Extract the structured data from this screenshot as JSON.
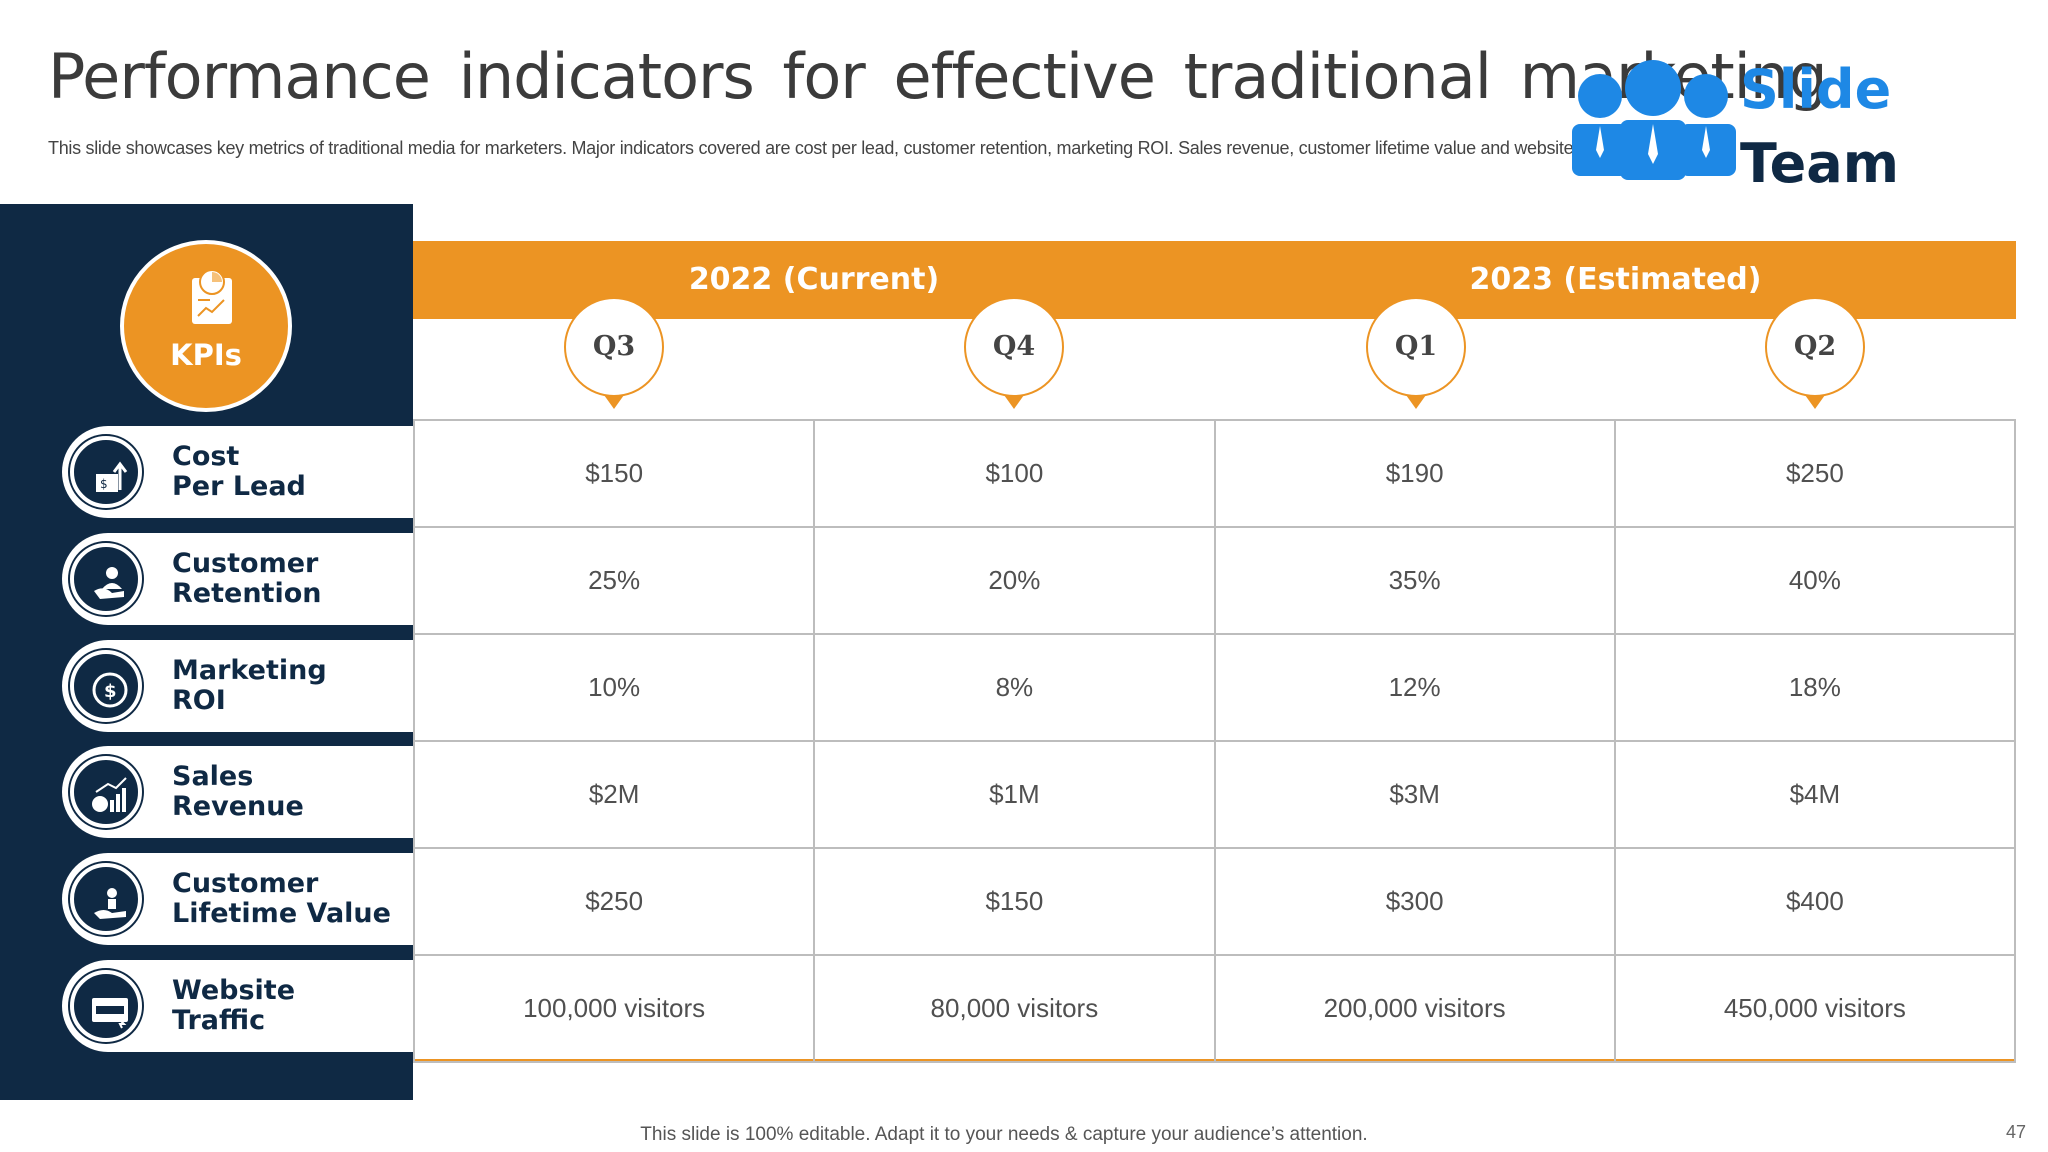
{
  "slide": {
    "title": "Performance indicators for effective traditional marketing",
    "subtitle": "This slide showcases key metrics of traditional media for marketers. Major indicators covered are cost per lead, customer retention, marketing ROI. Sales revenue, customer lifetime value and website traffic",
    "footer": "This slide is 100% editable. Adapt it to your needs & capture your audience’s attention.",
    "page_number": "47"
  },
  "logo": {
    "word1": "Slide",
    "word2": "Team"
  },
  "kpi_header": "KPIs",
  "years": [
    "2022 (Current)",
    "2023 (Estimated)"
  ],
  "quarters": [
    "Q3",
    "Q4",
    "Q1",
    "Q2"
  ],
  "kpis": [
    {
      "line1": "Cost",
      "line2": "Per Lead",
      "icon": "cost-per-lead-icon",
      "values": [
        "$150",
        "$100",
        "$190",
        "$250"
      ]
    },
    {
      "line1": "Customer",
      "line2": "Retention",
      "icon": "customer-retention-icon",
      "values": [
        "25%",
        "20%",
        "35%",
        "40%"
      ]
    },
    {
      "line1": "Marketing",
      "line2": "ROI",
      "icon": "marketing-roi-icon",
      "values": [
        "10%",
        "8%",
        "12%",
        "18%"
      ]
    },
    {
      "line1": "Sales",
      "line2": "Revenue",
      "icon": "sales-revenue-icon",
      "values": [
        "$2M",
        "$1M",
        "$3M",
        "$4M"
      ]
    },
    {
      "line1": "Customer",
      "line2": "Lifetime Value",
      "icon": "lifetime-value-icon",
      "values": [
        "$250",
        "$150",
        "$300",
        "$400"
      ]
    },
    {
      "line1": "Website",
      "line2": "Traffic",
      "icon": "website-traffic-icon",
      "values": [
        "100,000 visitors",
        "80,000 visitors",
        "200,000 visitors",
        "450,000 visitors"
      ]
    }
  ],
  "colors": {
    "navy": "#0f2944",
    "orange": "#ec9423",
    "logo_blue": "#1e88e5"
  }
}
